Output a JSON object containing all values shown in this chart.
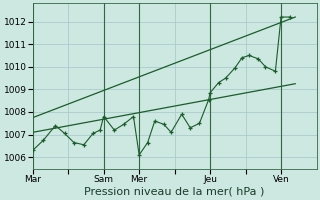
{
  "background_color": "#cce8e0",
  "grid_color": "#aacccc",
  "line_color": "#1a5c2a",
  "xlabel": "Pression niveau de la mer( hPa )",
  "ylim": [
    1005.5,
    1012.8
  ],
  "yticks": [
    1006,
    1007,
    1008,
    1009,
    1010,
    1011,
    1012
  ],
  "xtick_labels": [
    "Mar",
    "",
    "Sam",
    "Mer",
    "",
    "Jeu",
    "",
    "Ven"
  ],
  "xtick_positions": [
    0.0,
    0.5,
    1.0,
    1.5,
    2.0,
    2.5,
    3.0,
    3.5
  ],
  "xlim": [
    0.0,
    4.0
  ],
  "vlines": [
    0.0,
    1.0,
    1.5,
    2.5,
    3.5
  ],
  "main_series_x": [
    0.0,
    0.15,
    0.32,
    0.45,
    0.58,
    0.72,
    0.85,
    0.95,
    1.0,
    1.15,
    1.28,
    1.42,
    1.5,
    1.62,
    1.72,
    1.85,
    1.95,
    2.1,
    2.22,
    2.35,
    2.48,
    2.5,
    2.62,
    2.72,
    2.85,
    2.95,
    3.05,
    3.18,
    3.28,
    3.42,
    3.5,
    3.62
  ],
  "main_series_y": [
    1006.3,
    1006.75,
    1007.4,
    1007.05,
    1006.65,
    1006.55,
    1007.05,
    1007.2,
    1007.8,
    1007.2,
    1007.45,
    1007.8,
    1006.1,
    1006.65,
    1007.6,
    1007.45,
    1007.1,
    1007.9,
    1007.3,
    1007.5,
    1008.55,
    1008.85,
    1009.3,
    1009.5,
    1009.95,
    1010.4,
    1010.5,
    1010.35,
    1010.0,
    1009.8,
    1012.2,
    1012.2
  ],
  "trend_x": [
    0.0,
    3.7
  ],
  "trend_y": [
    1007.1,
    1009.25
  ],
  "upper_trend_x": [
    0.0,
    3.7
  ],
  "upper_trend_y": [
    1007.75,
    1012.2
  ],
  "xlabel_fontsize": 8,
  "tick_fontsize": 6.5,
  "vline_color": "#336644",
  "spine_color": "#336644"
}
